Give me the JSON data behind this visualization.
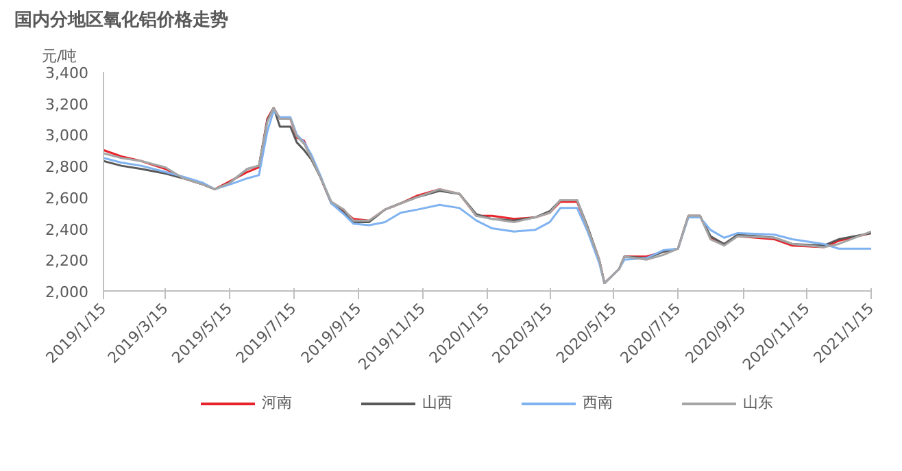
{
  "chart_data": {
    "type": "line",
    "title": "国内分地区氧化铝价格走势",
    "ylabel": "元/吨",
    "x": [
      "2019-01-15",
      "2019-02-01",
      "2019-02-20",
      "2019-03-15",
      "2019-04-01",
      "2019-04-20",
      "2019-05-01",
      "2019-05-15",
      "2019-06-01",
      "2019-06-12",
      "2019-06-20",
      "2019-06-26",
      "2019-07-02",
      "2019-07-12",
      "2019-07-18",
      "2019-07-25",
      "2019-08-01",
      "2019-08-10",
      "2019-08-20",
      "2019-09-01",
      "2019-09-10",
      "2019-09-25",
      "2019-10-10",
      "2019-10-25",
      "2019-11-10",
      "2019-12-01",
      "2019-12-20",
      "2020-01-05",
      "2020-01-20",
      "2020-02-10",
      "2020-03-01",
      "2020-03-15",
      "2020-03-25",
      "2020-04-10",
      "2020-04-20",
      "2020-05-01",
      "2020-05-06",
      "2020-05-20",
      "2020-05-25",
      "2020-06-15",
      "2020-07-01",
      "2020-07-15",
      "2020-07-25",
      "2020-08-05",
      "2020-08-15",
      "2020-08-28",
      "2020-09-10",
      "2020-10-15",
      "2020-11-01",
      "2020-12-01",
      "2020-12-15",
      "2021-01-15"
    ],
    "series": [
      {
        "name": "河南",
        "color": "#e8222a",
        "values": [
          2900,
          2860,
          2830,
          2780,
          2720,
          2680,
          2650,
          2700,
          2760,
          2790,
          3100,
          3170,
          3100,
          3100,
          2980,
          2960,
          2850,
          2720,
          2560,
          2510,
          2460,
          2450,
          2520,
          2560,
          2610,
          2650,
          2620,
          2480,
          2480,
          2460,
          2470,
          2500,
          2570,
          2570,
          2400,
          2200,
          2050,
          2140,
          2220,
          2220,
          2250,
          2270,
          2480,
          2480,
          2340,
          2300,
          2350,
          2330,
          2290,
          2280,
          2320,
          2370
        ]
      },
      {
        "name": "山西",
        "color": "#595959",
        "values": [
          2830,
          2800,
          2780,
          2750,
          2720,
          2680,
          2650,
          2690,
          2780,
          2800,
          3090,
          3170,
          3050,
          3050,
          2950,
          2900,
          2840,
          2720,
          2560,
          2500,
          2440,
          2440,
          2520,
          2560,
          2600,
          2640,
          2620,
          2490,
          2460,
          2450,
          2470,
          2510,
          2580,
          2580,
          2410,
          2200,
          2050,
          2140,
          2220,
          2210,
          2250,
          2270,
          2480,
          2480,
          2350,
          2300,
          2360,
          2340,
          2300,
          2290,
          2330,
          2370
        ]
      },
      {
        "name": "西南",
        "color": "#7fb2f0",
        "values": [
          2850,
          2820,
          2800,
          2760,
          2730,
          2690,
          2650,
          2680,
          2720,
          2740,
          3020,
          3150,
          3110,
          3110,
          3000,
          2950,
          2870,
          2730,
          2560,
          2490,
          2430,
          2420,
          2440,
          2500,
          2520,
          2550,
          2530,
          2450,
          2400,
          2380,
          2390,
          2440,
          2530,
          2530,
          2380,
          2180,
          2050,
          2140,
          2200,
          2210,
          2260,
          2270,
          2470,
          2470,
          2390,
          2340,
          2370,
          2360,
          2330,
          2300,
          2270,
          2270
        ]
      },
      {
        "name": "山东",
        "color": "#a5a5a5",
        "values": [
          2880,
          2850,
          2830,
          2790,
          2720,
          2680,
          2650,
          2690,
          2780,
          2800,
          3080,
          3170,
          3100,
          3100,
          2990,
          2940,
          2850,
          2720,
          2570,
          2520,
          2450,
          2450,
          2520,
          2560,
          2600,
          2650,
          2620,
          2480,
          2460,
          2440,
          2470,
          2500,
          2580,
          2580,
          2400,
          2200,
          2050,
          2140,
          2220,
          2200,
          2230,
          2270,
          2480,
          2480,
          2330,
          2290,
          2350,
          2340,
          2300,
          2280,
          2300,
          2380
        ]
      }
    ],
    "xlim": [
      "2019-01-15",
      "2021-01-15"
    ],
    "xticks": [
      {
        "value": "2019-01-15",
        "label": "2019/1/15"
      },
      {
        "value": "2019-03-15",
        "label": "2019/3/15"
      },
      {
        "value": "2019-05-15",
        "label": "2019/5/15"
      },
      {
        "value": "2019-07-15",
        "label": "2019/7/15"
      },
      {
        "value": "2019-09-15",
        "label": "2019/9/15"
      },
      {
        "value": "2019-11-15",
        "label": "2019/11/15"
      },
      {
        "value": "2020-01-15",
        "label": "2020/1/15"
      },
      {
        "value": "2020-03-15",
        "label": "2020/3/15"
      },
      {
        "value": "2020-05-15",
        "label": "2020/5/15"
      },
      {
        "value": "2020-07-15",
        "label": "2020/7/15"
      },
      {
        "value": "2020-09-15",
        "label": "2020/9/15"
      },
      {
        "value": "2020-11-15",
        "label": "2020/11/15"
      },
      {
        "value": "2021-01-15",
        "label": "2021/1/15"
      }
    ],
    "ylim": [
      2000,
      3400
    ],
    "yticks": [
      {
        "value": 2000,
        "label": "2,000"
      },
      {
        "value": 2200,
        "label": "2,200"
      },
      {
        "value": 2400,
        "label": "2,400"
      },
      {
        "value": 2600,
        "label": "2,600"
      },
      {
        "value": 2800,
        "label": "2,800"
      },
      {
        "value": 3000,
        "label": "3,000"
      },
      {
        "value": 3200,
        "label": "3,200"
      },
      {
        "value": 3400,
        "label": "3,400"
      }
    ],
    "legend": "bottom",
    "grid": false
  }
}
